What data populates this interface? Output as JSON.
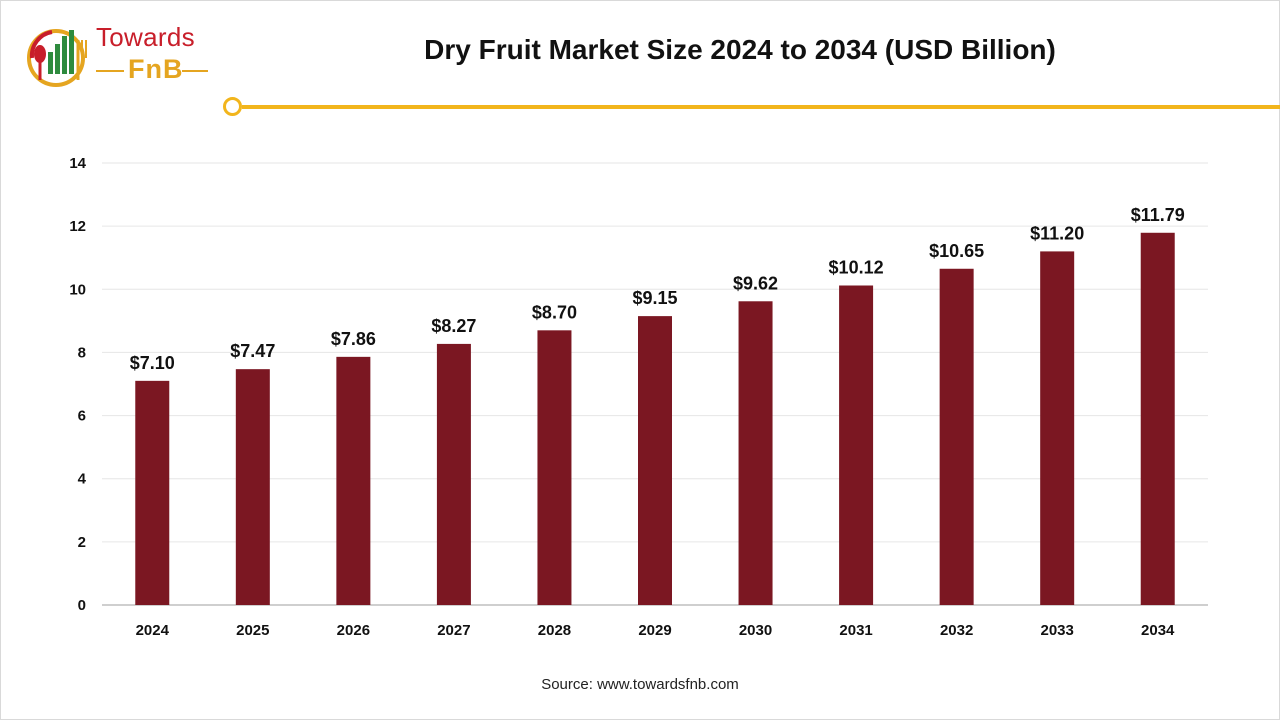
{
  "brand": {
    "top": "Towards",
    "bottom": "FnB"
  },
  "title": "Dry Fruit Market Size 2024 to 2034 (USD Billion)",
  "source": "Source: www.towardsfnb.com",
  "colors": {
    "bar": "#7b1722",
    "accent": "#f2b51c",
    "brand_red": "#c81e2a",
    "brand_gold": "#e5a520",
    "grid": "#e6e6e6"
  },
  "chart_data": {
    "type": "bar",
    "categories": [
      "2024",
      "2025",
      "2026",
      "2027",
      "2028",
      "2029",
      "2030",
      "2031",
      "2032",
      "2033",
      "2034"
    ],
    "values": [
      7.1,
      7.47,
      7.86,
      8.27,
      8.7,
      9.15,
      9.62,
      10.12,
      10.65,
      11.2,
      11.79
    ],
    "data_labels": [
      "$7.10",
      "$7.47",
      "$7.86",
      "$8.27",
      "$8.70",
      "$9.15",
      "$9.62",
      "$10.12",
      "$10.65",
      "$11.20",
      "$11.79"
    ],
    "yticks": [
      0,
      2,
      4,
      6,
      8,
      10,
      12,
      14
    ],
    "ylim": [
      0,
      14
    ],
    "title": "Dry Fruit Market Size 2024 to 2034 (USD Billion)",
    "xlabel": "",
    "ylabel": "",
    "grid": true,
    "legend": "none"
  }
}
